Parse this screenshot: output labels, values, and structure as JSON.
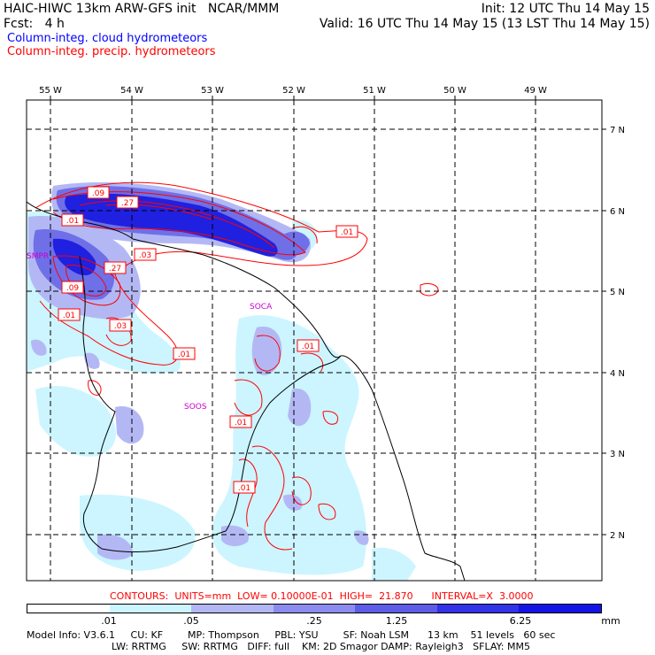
{
  "header": {
    "title_left": "HAIC-HIWC 13km ARW-GFS init   NCAR/MMM",
    "forecast_left": "Fcst:   4 h",
    "init_right": "Init: 12 UTC Thu 14 May 15",
    "valid_right": "Valid: 16 UTC Thu 14 May 15 (13 LST Thu 14 May 15)"
  },
  "legend": {
    "cloud_label": "Column-integ. cloud hydrometeors",
    "precip_label": "Column-integ. precip. hydrometeors",
    "cloud_color": "#0000ff",
    "precip_color": "#ff0000"
  },
  "map": {
    "lon_labels": [
      "55 W",
      "54 W",
      "53 W",
      "52 W",
      "51 W",
      "50 W",
      "49 W"
    ],
    "lat_labels": [
      "7 N",
      "6 N",
      "5 N",
      "4 N",
      "3 N",
      "2 N"
    ],
    "places": [
      "SMPR",
      "SOCA",
      "SOOS"
    ],
    "contour_labels": [
      ".09",
      ".27",
      ".01",
      ".01",
      ".03",
      ".27",
      ".09",
      ".01",
      ".03",
      ".01",
      ".01",
      ".01",
      ".01"
    ]
  },
  "contour_info": {
    "text": "CONTOURS:  UNITS=mm  LOW= 0.10000E-01  HIGH=  21.870      INTERVAL=X  3.0000"
  },
  "colorbar": {
    "colors": [
      "#ffffff",
      "#ccf5ff",
      "#b3b8f5",
      "#8c8cf0",
      "#5c5ce8",
      "#3232e6",
      "#1414e6"
    ],
    "labels": [
      ".01",
      ".05",
      ".25",
      "1.25",
      "6.25",
      "mm"
    ]
  },
  "footer": {
    "line1": "Model Info: V3.6.1     CU: KF        MP: Thompson     PBL: YSU        SF: Noah LSM      13 km    51 levels   60 sec",
    "line2": "LW: RRTMG     SW: RRTMG   DIFF: full    KM: 2D Smagor DAMP: Rayleigh3   SFLAY: MM5"
  }
}
